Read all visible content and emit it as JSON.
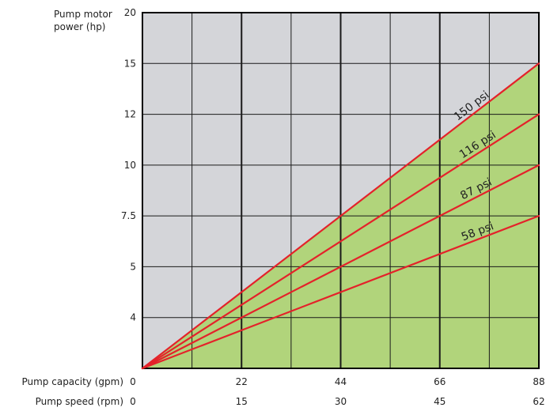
{
  "chart_data": {
    "type": "line",
    "ylabel_lines": [
      "Pump motor",
      "power (hp)"
    ],
    "x_axes": [
      {
        "label": "Pump capacity (gpm)",
        "ticks": [
          "0",
          "22",
          "44",
          "66",
          "88"
        ]
      },
      {
        "label": "Pump speed (rpm)",
        "ticks": [
          "0",
          "15",
          "30",
          "45",
          "62"
        ]
      }
    ],
    "y_ticks": [
      "4",
      "5",
      "7.5",
      "10",
      "12",
      "15",
      "20"
    ],
    "x_range": [
      0,
      88
    ],
    "y_plot_range": [
      0,
      7
    ],
    "y_positions": [
      0,
      1,
      2,
      3,
      4,
      5,
      6,
      7
    ],
    "y_tick_values": [
      1,
      2,
      3,
      4,
      5,
      6,
      7
    ],
    "minor_x_gridlines": [
      11,
      33,
      55,
      77
    ],
    "major_x_gridlines": [
      22,
      44,
      66
    ],
    "grid": true,
    "series": [
      {
        "name": "150 psi",
        "x": [
          0,
          88
        ],
        "y": [
          0,
          6
        ]
      },
      {
        "name": "116 psi",
        "x": [
          0,
          88
        ],
        "y": [
          0,
          5
        ]
      },
      {
        "name": "87 psi",
        "x": [
          0,
          88
        ],
        "y": [
          0,
          4
        ]
      },
      {
        "name": "58 psi",
        "x": [
          0,
          88
        ],
        "y": [
          0,
          3
        ]
      }
    ],
    "label_at_x": [
      [
        70.5,
        80
      ],
      [
        71.5,
        80
      ],
      [
        71.5,
        80
      ],
      [
        71.5,
        80
      ]
    ],
    "colors": {
      "plot_background": "#d4d5d9",
      "fill_under_top_series": "#b1d47b",
      "series_line": "#e4222a",
      "gridline": "#1a1a1a",
      "frame": "#000000"
    }
  }
}
